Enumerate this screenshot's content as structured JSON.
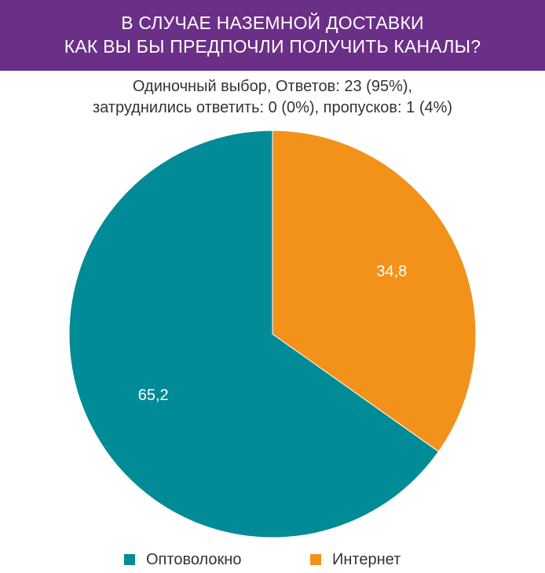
{
  "chart_data": {
    "type": "pie",
    "title": [
      "В СЛУЧАЕ НАЗЕМНОЙ ДОСТАВКИ",
      "КАК ВЫ БЫ ПРЕДПОЧЛИ ПОЛУЧИТЬ КАНАЛЫ?"
    ],
    "subtitle": [
      "Одиночный выбор, Ответов: 23 (95%),",
      "затруднились ответить: 0 (0%), пропусков: 1 (4%)"
    ],
    "categories": [
      "Оптоволокно",
      "Интернет"
    ],
    "values": [
      65.2,
      34.8
    ],
    "labels": [
      "65,2",
      "34,8"
    ],
    "colors": [
      "#008b96",
      "#f2921a"
    ],
    "legend_placement": "bottom",
    "start_angle": "12 o'clock",
    "direction": "clockwise from Интернет"
  },
  "colors": {
    "header_bg": "#6b2f87",
    "header_text": "#ffffff"
  }
}
